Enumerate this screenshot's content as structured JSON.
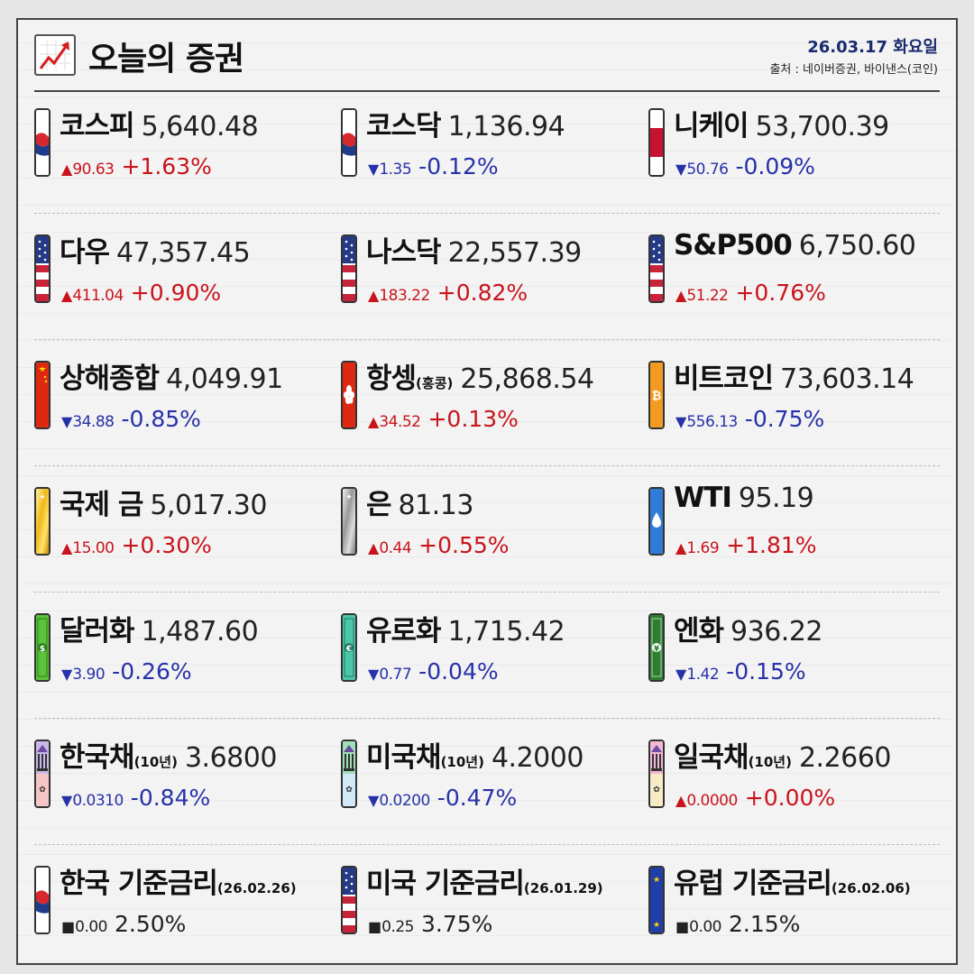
{
  "header": {
    "title": "오늘의 증권",
    "date": "26.03.17 화요일",
    "source": "출처 : 네이버증권, 바이낸스(코인)"
  },
  "colors": {
    "up": "#c9141c",
    "down": "#2731a8",
    "flat": "#222222",
    "date": "#1a2a6e"
  },
  "items": [
    {
      "name": "코스피",
      "sub": "",
      "value": "5,640.48",
      "dir": "up",
      "arrow": "▲",
      "delta": "90.63",
      "pct": "+1.63%",
      "flag_icon": "korea-flag-icon"
    },
    {
      "name": "코스닥",
      "sub": "",
      "value": "1,136.94",
      "dir": "down",
      "arrow": "▼",
      "delta": "1.35",
      "pct": "-0.12%",
      "flag_icon": "korea-flag-icon"
    },
    {
      "name": "니케이",
      "sub": "",
      "value": "53,700.39",
      "dir": "down",
      "arrow": "▼",
      "delta": "50.76",
      "pct": "-0.09%",
      "flag_icon": "japan-flag-icon"
    },
    {
      "name": "다우",
      "sub": "",
      "value": "47,357.45",
      "dir": "up",
      "arrow": "▲",
      "delta": "411.04",
      "pct": "+0.90%",
      "flag_icon": "usa-flag-icon"
    },
    {
      "name": "나스닥",
      "sub": "",
      "value": "22,557.39",
      "dir": "up",
      "arrow": "▲",
      "delta": "183.22",
      "pct": "+0.82%",
      "flag_icon": "usa-flag-icon"
    },
    {
      "name": "S&P500",
      "sub": "",
      "value": "6,750.60",
      "dir": "up",
      "arrow": "▲",
      "delta": "51.22",
      "pct": "+0.76%",
      "flag_icon": "usa-flag-icon"
    },
    {
      "name": "상해종합",
      "sub": "",
      "value": "4,049.91",
      "dir": "down",
      "arrow": "▼",
      "delta": "34.88",
      "pct": "-0.85%",
      "flag_icon": "china-flag-icon"
    },
    {
      "name": "항셍",
      "sub": "(홍콩)",
      "value": "25,868.54",
      "dir": "up",
      "arrow": "▲",
      "delta": "34.52",
      "pct": "+0.13%",
      "flag_icon": "hongkong-flag-icon"
    },
    {
      "name": "비트코인",
      "sub": "",
      "value": "73,603.14",
      "dir": "down",
      "arrow": "▼",
      "delta": "556.13",
      "pct": "-0.75%",
      "flag_icon": "bitcoin-icon"
    },
    {
      "name": "국제 금",
      "sub": "",
      "value": "5,017.30",
      "dir": "up",
      "arrow": "▲",
      "delta": "15.00",
      "pct": "+0.30%",
      "flag_icon": "gold-bar-icon"
    },
    {
      "name": "은",
      "sub": "",
      "value": "81.13",
      "dir": "up",
      "arrow": "▲",
      "delta": "0.44",
      "pct": "+0.55%",
      "flag_icon": "silver-bar-icon"
    },
    {
      "name": "WTI",
      "sub": "",
      "value": "95.19",
      "dir": "up",
      "arrow": "▲",
      "delta": "1.69",
      "pct": "+1.81%",
      "flag_icon": "oil-drop-icon"
    },
    {
      "name": "달러화",
      "sub": "",
      "value": "1,487.60",
      "dir": "down",
      "arrow": "▼",
      "delta": "3.90",
      "pct": "-0.26%",
      "flag_icon": "dollar-bill-icon"
    },
    {
      "name": "유로화",
      "sub": "",
      "value": "1,715.42",
      "dir": "down",
      "arrow": "▼",
      "delta": "0.77",
      "pct": "-0.04%",
      "flag_icon": "euro-bill-icon"
    },
    {
      "name": "엔화",
      "sub": "",
      "value": "936.22",
      "dir": "down",
      "arrow": "▼",
      "delta": "1.42",
      "pct": "-0.15%",
      "flag_icon": "yen-bill-icon"
    },
    {
      "name": "한국채",
      "sub": "(10년)",
      "value": "3.6800",
      "dir": "down",
      "arrow": "▼",
      "delta": "0.0310",
      "pct": "-0.84%",
      "flag_icon": "korea-bond-icon"
    },
    {
      "name": "미국채",
      "sub": "(10년)",
      "value": "4.2000",
      "dir": "down",
      "arrow": "▼",
      "delta": "0.0200",
      "pct": "-0.47%",
      "flag_icon": "us-bond-icon"
    },
    {
      "name": "일국채",
      "sub": "(10년)",
      "value": "2.2660",
      "dir": "up",
      "arrow": "▲",
      "delta": "0.0000",
      "pct": "+0.00%",
      "flag_icon": "japan-bond-icon"
    },
    {
      "name": "한국 기준금리",
      "sub": "(26.02.26)",
      "value": "",
      "dir": "flat",
      "arrow": "■",
      "delta": "0.00",
      "pct": "2.50%",
      "flag_icon": "korea-flag-icon"
    },
    {
      "name": "미국 기준금리",
      "sub": "(26.01.29)",
      "value": "",
      "dir": "flat",
      "arrow": "■",
      "delta": "0.25",
      "pct": "3.75%",
      "flag_icon": "usa-flag-icon"
    },
    {
      "name": "유럽 기준금리",
      "sub": "(26.02.06)",
      "value": "",
      "dir": "flat",
      "arrow": "■",
      "delta": "0.00",
      "pct": "2.15%",
      "flag_icon": "eu-flag-icon"
    }
  ]
}
